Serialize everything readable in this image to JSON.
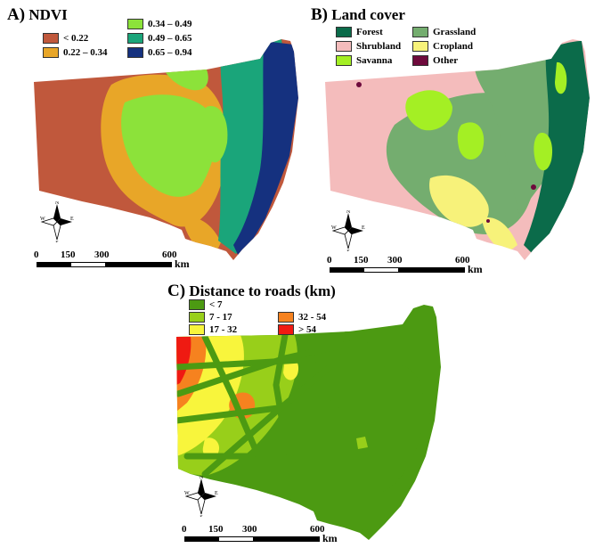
{
  "panels": [
    {
      "id": "A",
      "letter": "A)",
      "title": "NDVI",
      "legend": [
        {
          "label": "< 0.22",
          "color": "#c0583c"
        },
        {
          "label": "0.22 – 0.34",
          "color": "#e8a628"
        },
        {
          "label": "0.34 – 0.49",
          "color": "#8ce23a"
        },
        {
          "label": "0.49 – 0.65",
          "color": "#1aa57a"
        },
        {
          "label": "0.65 – 0.94",
          "color": "#15317f"
        }
      ]
    },
    {
      "id": "B",
      "letter": "B)",
      "title": "Land cover",
      "legend": [
        {
          "label": "Forest",
          "color": "#0b6b4a"
        },
        {
          "label": "Shrubland",
          "color": "#f4bcbc"
        },
        {
          "label": "Savanna",
          "color": "#a4ef24"
        },
        {
          "label": "Grassland",
          "color": "#74ad6f"
        },
        {
          "label": "Cropland",
          "color": "#f7f27a"
        },
        {
          "label": "Other",
          "color": "#6e0a3c"
        }
      ]
    },
    {
      "id": "C",
      "letter": "C)",
      "title": "Distance to roads (km)",
      "legend": [
        {
          "label": "< 7",
          "color": "#4c9a12"
        },
        {
          "label": "7 - 17",
          "color": "#98cf1a"
        },
        {
          "label": "17 - 32",
          "color": "#f8f53c"
        },
        {
          "label": "32 - 54",
          "color": "#f6821f"
        },
        {
          "label": "> 54",
          "color": "#ef1a12"
        }
      ]
    }
  ],
  "scale_bar": {
    "ticks": [
      "0",
      "150",
      "300",
      "600"
    ],
    "unit": "km"
  },
  "compass": {
    "n": "N",
    "s": "S",
    "e": "E",
    "w": "W"
  }
}
